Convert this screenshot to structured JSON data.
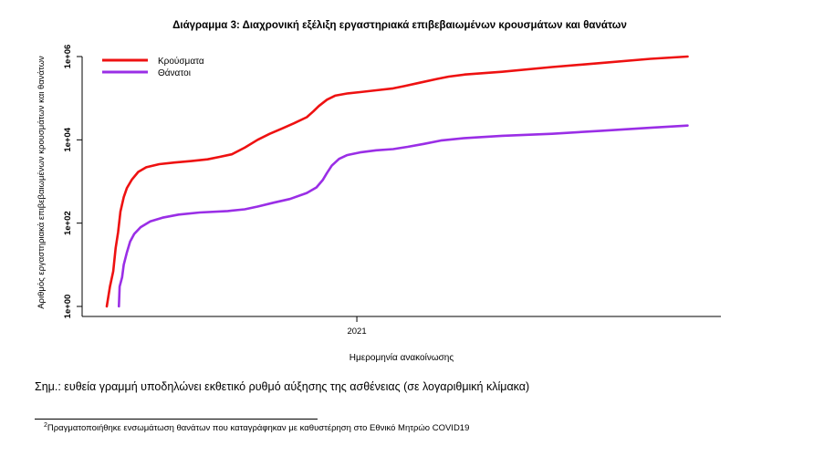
{
  "chart_data": {
    "type": "line",
    "title": "Διάγραμμα 3: Διαχρονική εξέλιξη εργαστηριακά επιβεβαιωμένων κρουσμάτων και θανάτων",
    "xlabel": "Ημερομηνία ανακοίνωσης",
    "ylabel": "Αριθμός εργαστηριακά επιβεβαιωμένων κρουσμάτων και θανάτων",
    "y_scale": "log10",
    "ylim": [
      1,
      1000000
    ],
    "xlim": [
      "2020-02-26",
      "2022-02-28"
    ],
    "x_ticks": [
      {
        "value": "2021-01-01",
        "label": "2021"
      }
    ],
    "y_ticks": [
      {
        "value": 1,
        "label": "1e+00"
      },
      {
        "value": 100,
        "label": "1e+02"
      },
      {
        "value": 10000,
        "label": "1e+04"
      },
      {
        "value": 1000000,
        "label": "1e+06"
      }
    ],
    "legend_position": "top-left",
    "grid": false,
    "series": [
      {
        "name": "Κρούσματα",
        "color": "#ee1111",
        "points": [
          [
            "2020-02-26",
            1
          ],
          [
            "2020-03-01",
            3
          ],
          [
            "2020-03-05",
            7
          ],
          [
            "2020-03-08",
            25
          ],
          [
            "2020-03-11",
            60
          ],
          [
            "2020-03-14",
            190
          ],
          [
            "2020-03-18",
            420
          ],
          [
            "2020-03-22",
            700
          ],
          [
            "2020-03-28",
            1100
          ],
          [
            "2020-04-05",
            1700
          ],
          [
            "2020-04-15",
            2200
          ],
          [
            "2020-05-01",
            2600
          ],
          [
            "2020-05-20",
            2850
          ],
          [
            "2020-06-10",
            3100
          ],
          [
            "2020-06-30",
            3400
          ],
          [
            "2020-07-15",
            3900
          ],
          [
            "2020-07-30",
            4500
          ],
          [
            "2020-08-15",
            6500
          ],
          [
            "2020-08-31",
            10000
          ],
          [
            "2020-09-15",
            14000
          ],
          [
            "2020-09-30",
            18500
          ],
          [
            "2020-10-15",
            25000
          ],
          [
            "2020-10-31",
            35000
          ],
          [
            "2020-11-08",
            48000
          ],
          [
            "2020-11-15",
            65000
          ],
          [
            "2020-11-25",
            92000
          ],
          [
            "2020-12-05",
            115000
          ],
          [
            "2020-12-20",
            130000
          ],
          [
            "2021-01-05",
            140000
          ],
          [
            "2021-01-25",
            155000
          ],
          [
            "2021-02-15",
            172000
          ],
          [
            "2021-03-01",
            195000
          ],
          [
            "2021-03-20",
            235000
          ],
          [
            "2021-04-10",
            290000
          ],
          [
            "2021-04-25",
            330000
          ],
          [
            "2021-05-15",
            370000
          ],
          [
            "2021-06-30",
            430000
          ],
          [
            "2021-08-31",
            560000
          ],
          [
            "2021-10-31",
            700000
          ],
          [
            "2021-12-31",
            880000
          ],
          [
            "2022-02-15",
            1000000
          ]
        ]
      },
      {
        "name": "Θάνατοι",
        "color": "#9a2ee6",
        "points": [
          [
            "2020-03-12",
            1
          ],
          [
            "2020-03-13",
            3
          ],
          [
            "2020-03-16",
            5
          ],
          [
            "2020-03-18",
            10
          ],
          [
            "2020-03-22",
            20
          ],
          [
            "2020-03-26",
            36
          ],
          [
            "2020-03-31",
            55
          ],
          [
            "2020-04-08",
            80
          ],
          [
            "2020-04-20",
            110
          ],
          [
            "2020-05-05",
            135
          ],
          [
            "2020-05-25",
            160
          ],
          [
            "2020-06-20",
            180
          ],
          [
            "2020-07-25",
            195
          ],
          [
            "2020-08-15",
            215
          ],
          [
            "2020-08-31",
            250
          ],
          [
            "2020-09-20",
            310
          ],
          [
            "2020-10-10",
            380
          ],
          [
            "2020-10-31",
            530
          ],
          [
            "2020-11-12",
            720
          ],
          [
            "2020-11-20",
            1100
          ],
          [
            "2020-11-25",
            1600
          ],
          [
            "2020-12-01",
            2400
          ],
          [
            "2020-12-10",
            3500
          ],
          [
            "2020-12-20",
            4300
          ],
          [
            "2021-01-05",
            5000
          ],
          [
            "2021-01-25",
            5600
          ],
          [
            "2021-02-15",
            6000
          ],
          [
            "2021-03-05",
            6800
          ],
          [
            "2021-03-25",
            8000
          ],
          [
            "2021-04-15",
            9600
          ],
          [
            "2021-05-15",
            11000
          ],
          [
            "2021-06-30",
            12500
          ],
          [
            "2021-08-31",
            14000
          ],
          [
            "2021-10-31",
            16500
          ],
          [
            "2021-12-31",
            19500
          ],
          [
            "2022-02-15",
            22000
          ]
        ]
      }
    ]
  },
  "note": "Σημ.: ευθεία γραμμή υποδηλώνει εκθετικό ρυθμό αύξησης της ασθένειας (σε λογαριθμική κλίμακα)",
  "footnote": {
    "marker": "2",
    "text": "Πραγματοποιήθηκε ενσωμάτωση θανάτων που καταγράφηκαν με καθυστέρηση στο Εθνικό Μητρώο COVID19"
  }
}
